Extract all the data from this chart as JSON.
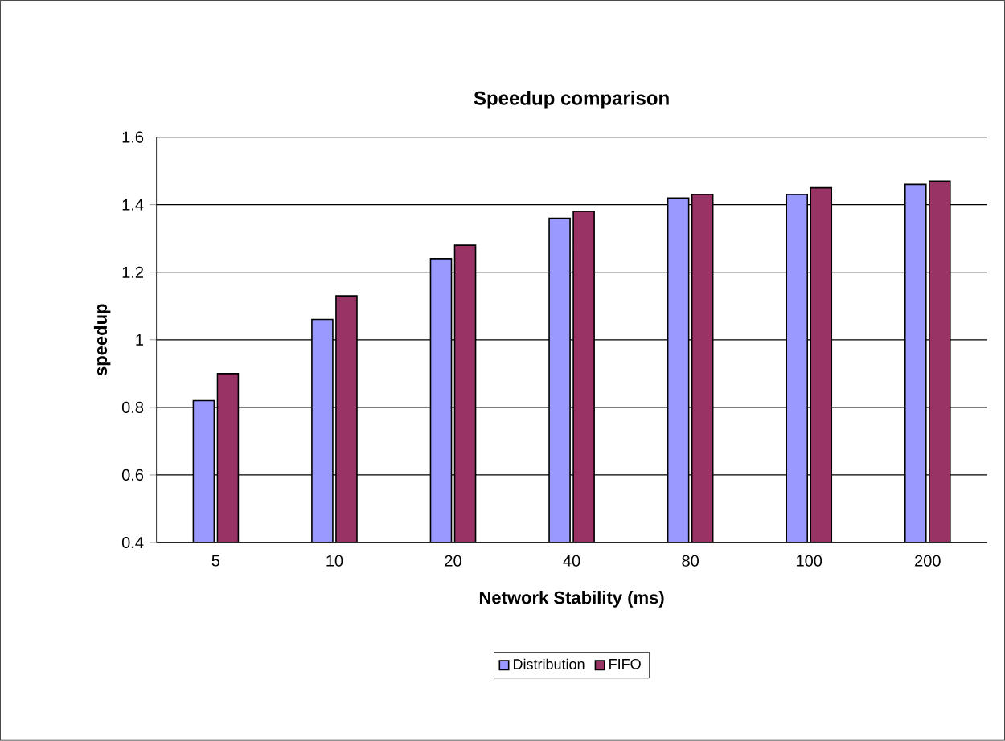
{
  "chart_data": {
    "type": "bar",
    "title": "Speedup comparison",
    "xlabel": "Network Stability (ms)",
    "ylabel": "speedup",
    "categories": [
      "5",
      "10",
      "20",
      "40",
      "80",
      "100",
      "200"
    ],
    "series": [
      {
        "name": "Distribution",
        "color": "#9999ff",
        "values": [
          0.82,
          1.06,
          1.24,
          1.36,
          1.42,
          1.43,
          1.46
        ]
      },
      {
        "name": "FIFO",
        "color": "#993366",
        "values": [
          0.9,
          1.13,
          1.28,
          1.38,
          1.43,
          1.45,
          1.47
        ]
      }
    ],
    "ylim": [
      0.4,
      1.6
    ],
    "yticks": [
      0.4,
      0.6,
      0.8,
      1,
      1.2,
      1.4,
      1.6
    ],
    "grid": "y",
    "legend": "bottom"
  }
}
